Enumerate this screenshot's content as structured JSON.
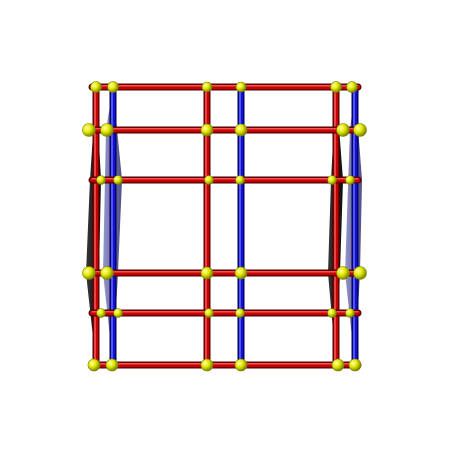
{
  "figure": {
    "kind": "3d-wireframe-render",
    "description_colors": {
      "background": "#ffffff",
      "edge_front": "#cc0000",
      "edge_front_dark": "#6a0000",
      "edge_back": "#0000cc",
      "edge_back_dark": "#00006a",
      "face_front": "#111111",
      "face_back": "#5a5a90",
      "vertex": "#e0e800",
      "vertex_dark": "#6a7000"
    }
  }
}
